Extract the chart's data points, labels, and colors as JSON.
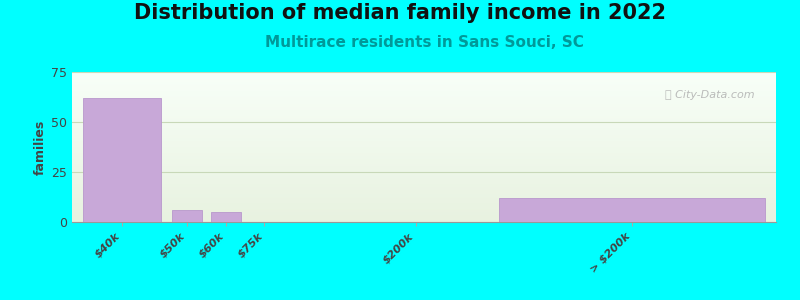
{
  "title": "Distribution of median family income in 2022",
  "subtitle": "Multirace residents in Sans Souci, SC",
  "ylabel": "families",
  "background_color": "#00FFFF",
  "bar_color": "#c8a8d8",
  "bar_edge_color": "#b898cc",
  "values": [
    62,
    6,
    5,
    0,
    0,
    12
  ],
  "bar_lefts": [
    0,
    1.6,
    2.3,
    3.0,
    5.5,
    7.5
  ],
  "bar_widths": [
    1.4,
    0.55,
    0.55,
    0.55,
    0.55,
    4.8
  ],
  "xtick_positions": [
    0.7,
    1.87,
    2.57,
    3.27,
    6.0,
    9.9
  ],
  "xtick_labels": [
    "$40k",
    "$50k",
    "$60k",
    "$75k",
    "$200k",
    "> $200k"
  ],
  "ylim": [
    0,
    75
  ],
  "xlim": [
    -0.2,
    12.5
  ],
  "yticks": [
    0,
    25,
    50,
    75
  ],
  "title_fontsize": 15,
  "subtitle_fontsize": 11,
  "subtitle_color": "#009999",
  "watermark": "ⓘ City-Data.com",
  "grid_color": "#c8d8b8",
  "bg_gradient_top": "#e8f2e0",
  "bg_gradient_bottom": "#f8fff8"
}
